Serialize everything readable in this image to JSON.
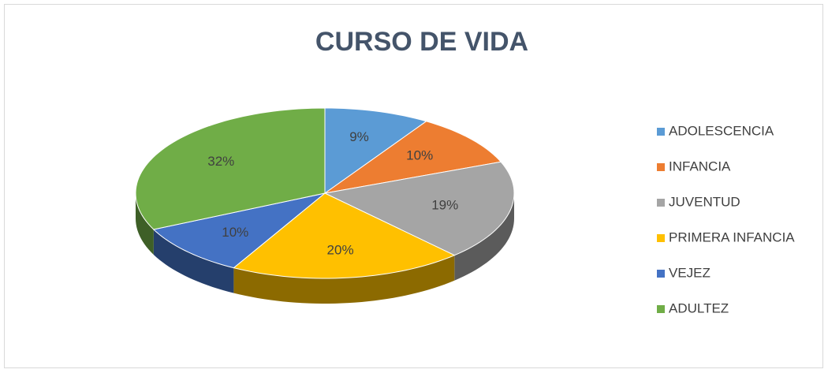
{
  "chart_data": {
    "type": "pie",
    "title": "CURSO DE VIDA",
    "categories": [
      "ADOLESCENCIA",
      "INFANCIA",
      "JUVENTUD",
      "PRIMERA INFANCIA",
      "VEJEZ",
      "ADULTEZ"
    ],
    "values": [
      9,
      10,
      19,
      20,
      10,
      32
    ],
    "value_labels": [
      "9%",
      "10%",
      "19%",
      "20%",
      "10%",
      "32%"
    ],
    "colors": [
      "#5b9bd5",
      "#ed7d31",
      "#a5a5a5",
      "#ffc000",
      "#4472c4",
      "#70ad47"
    ],
    "legend": "right"
  }
}
